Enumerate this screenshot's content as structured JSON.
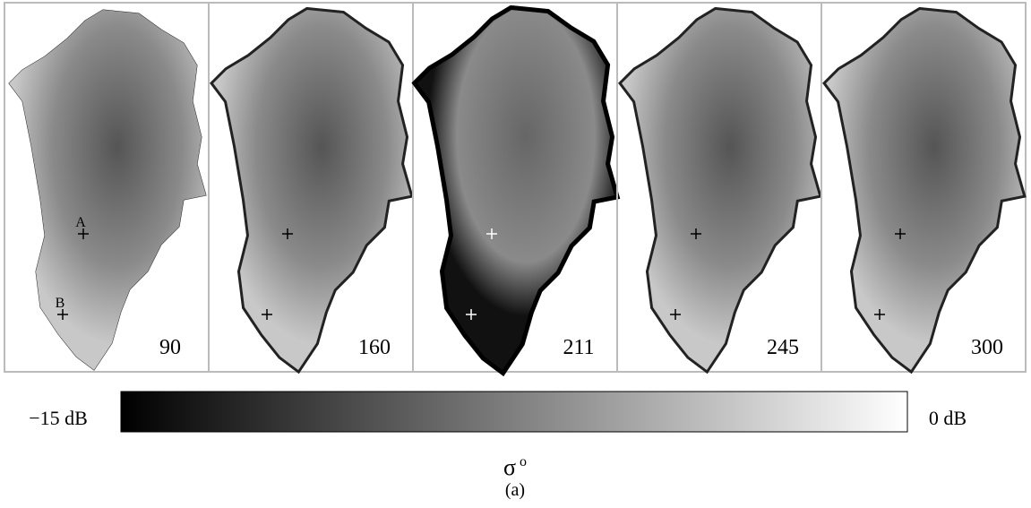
{
  "panels": [
    {
      "day": "90"
    },
    {
      "day": "160"
    },
    {
      "day": "211"
    },
    {
      "day": "245"
    },
    {
      "day": "300"
    }
  ],
  "points": [
    "A",
    "B"
  ],
  "colorbar": {
    "min_label": "−15 dB",
    "max_label": "0 dB"
  },
  "symbol": {
    "base": "σ",
    "superscript": "o"
  },
  "caption": "(a)"
}
